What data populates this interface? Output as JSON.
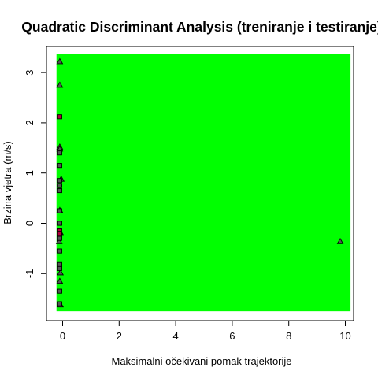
{
  "chart_data": {
    "type": "scatter",
    "title": "Quadratic Discriminant Analysis (treniranje i testiranje)",
    "xlabel": "Maksimalni očekivani pomak trajektorije",
    "ylabel": "Brzina vjetra (m/s)",
    "xlim": [
      -0.3,
      10.1
    ],
    "ylim": [
      -1.75,
      3.35
    ],
    "xticks": [
      0,
      2,
      4,
      6,
      8,
      10
    ],
    "yticks": [
      -1,
      0,
      1,
      2,
      3
    ],
    "grid": false,
    "legend": "none",
    "background_region_color": "#00ff00",
    "marker_fill_colors": {
      "class_a": "#555555",
      "class_b": "#b4003c"
    },
    "series": [
      {
        "marker": "triangle",
        "fill": "class_a",
        "points": [
          {
            "x": -0.1,
            "y": 3.22
          },
          {
            "x": -0.1,
            "y": 2.75
          },
          {
            "x": -0.1,
            "y": 1.52
          },
          {
            "x": -0.1,
            "y": 1.48
          },
          {
            "x": -0.05,
            "y": 0.88
          },
          {
            "x": -0.1,
            "y": 0.26
          },
          {
            "x": -0.08,
            "y": -0.18
          },
          {
            "x": -0.12,
            "y": -0.36
          },
          {
            "x": -0.08,
            "y": -0.98
          },
          {
            "x": -0.1,
            "y": -1.15
          },
          {
            "x": -0.08,
            "y": -1.62
          },
          {
            "x": 9.82,
            "y": -0.36
          }
        ]
      },
      {
        "marker": "square",
        "fill": "class_a",
        "points": [
          {
            "x": -0.1,
            "y": 1.4
          },
          {
            "x": -0.1,
            "y": 1.15
          },
          {
            "x": -0.1,
            "y": 0.85
          },
          {
            "x": -0.1,
            "y": 0.75
          },
          {
            "x": -0.1,
            "y": 0.65
          },
          {
            "x": -0.1,
            "y": 0.25
          },
          {
            "x": -0.1,
            "y": 0.0
          },
          {
            "x": -0.1,
            "y": -0.3
          },
          {
            "x": -0.1,
            "y": -0.55
          },
          {
            "x": -0.1,
            "y": -0.82
          },
          {
            "x": -0.1,
            "y": -0.9
          },
          {
            "x": -0.1,
            "y": -1.35
          },
          {
            "x": -0.1,
            "y": -1.6
          }
        ]
      },
      {
        "marker": "square",
        "fill": "class_b",
        "points": [
          {
            "x": -0.1,
            "y": 2.12
          },
          {
            "x": -0.1,
            "y": -0.15
          },
          {
            "x": -0.1,
            "y": -0.2
          }
        ]
      }
    ]
  }
}
